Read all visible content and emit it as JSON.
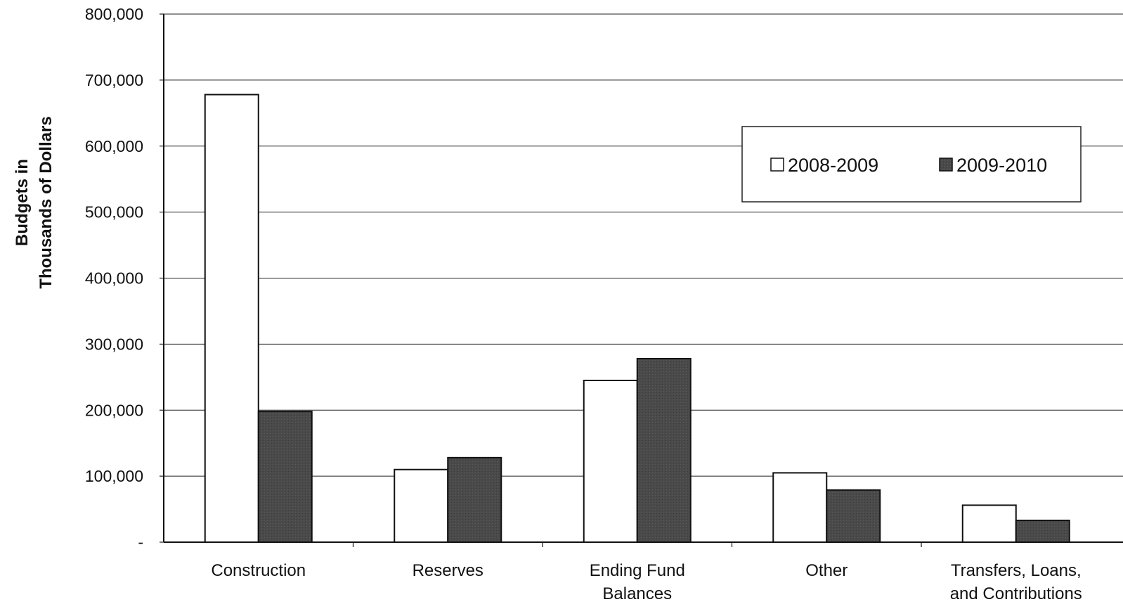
{
  "chart_data": {
    "type": "bar",
    "categories": [
      [
        "Construction"
      ],
      [
        "Reserves"
      ],
      [
        "Ending Fund",
        "Balances"
      ],
      [
        "Other"
      ],
      [
        "Transfers, Loans,",
        "and Contributions"
      ]
    ],
    "series": [
      {
        "name": "2008-2009",
        "color": "#ffffff",
        "values": [
          678000,
          110000,
          245000,
          105000,
          56000
        ]
      },
      {
        "name": "2009-2010",
        "color": "#4a4a4a",
        "values": [
          198000,
          128000,
          278000,
          79000,
          33000
        ]
      }
    ],
    "ylabel": [
      "Budgets in",
      "Thousands of Dollars"
    ],
    "xlabel": "",
    "ylim": [
      0,
      800000
    ],
    "yticks": [
      {
        "value": 800000,
        "label": "800,000"
      },
      {
        "value": 700000,
        "label": "700,000"
      },
      {
        "value": 600000,
        "label": "600,000"
      },
      {
        "value": 500000,
        "label": "500,000"
      },
      {
        "value": 400000,
        "label": "400,000"
      },
      {
        "value": 300000,
        "label": "300,000"
      },
      {
        "value": 200000,
        "label": "200,000"
      },
      {
        "value": 100000,
        "label": "100,000"
      },
      {
        "value": 0,
        "label": "-"
      }
    ],
    "grid": true,
    "legend_position": "top-right"
  }
}
